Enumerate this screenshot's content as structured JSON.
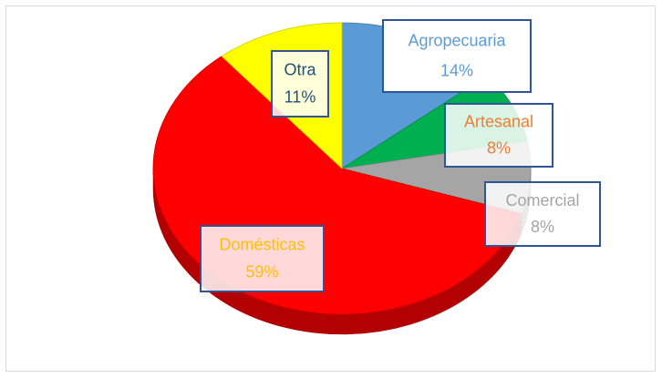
{
  "chart_data": {
    "type": "pie3d",
    "categories": [
      "Agropecuaria",
      "Artesanal",
      "Comercial",
      "Domésticas",
      "Otra"
    ],
    "values": [
      14,
      8,
      8,
      59,
      11
    ],
    "value_labels": [
      "14%",
      "8%",
      "8%",
      "59%",
      "11%"
    ],
    "colors": [
      "#5b9bd5",
      "#00b050",
      "#a5a5a5",
      "#ff0000",
      "#ffff00"
    ],
    "label_colors": [
      "#5b9bd5",
      "#ed7d31",
      "#a5a5a5",
      "#ffc000",
      "#1f4e79"
    ]
  }
}
